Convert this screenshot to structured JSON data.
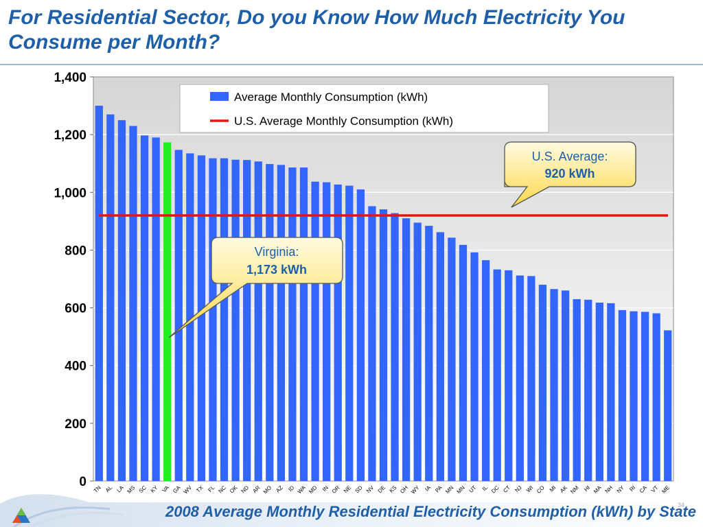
{
  "slide": {
    "title": "For Residential Sector, Do you Know How Much Electricity You Consume per Month?",
    "caption": "2008 Average Monthly Residential Electricity Consumption (kWh) by State",
    "page_number": "34"
  },
  "colors": {
    "bar": "#3366ff",
    "highlight_bar": "#22ee22",
    "average_line": "#ee1111",
    "callout_fill_top": "#fffbe0",
    "callout_fill_bottom": "#ffd84a",
    "title_color": "#1f5fa8"
  },
  "chart_data": {
    "type": "bar",
    "categories": [
      "TN",
      "AL",
      "LA",
      "MS",
      "SC",
      "KY",
      "VA",
      "GA",
      "WV",
      "TX",
      "FL",
      "NC",
      "OK",
      "ND",
      "AR",
      "MO",
      "AZ",
      "ID",
      "WA",
      "MD",
      "IN",
      "OR",
      "NE",
      "SD",
      "NV",
      "DE",
      "KS",
      "OH",
      "WY",
      "IA",
      "PA",
      "MN",
      "MN",
      "UT",
      "IL",
      "DC",
      "CT",
      "NJ",
      "WI",
      "CO",
      "MI",
      "AK",
      "NM",
      "HI",
      "MA",
      "NH",
      "NY",
      "RI",
      "CA",
      "VT",
      "ME"
    ],
    "series": [
      {
        "name": "Average Monthly Consumption (kWh)",
        "values": [
          1300,
          1270,
          1250,
          1230,
          1197,
          1190,
          1173,
          1147,
          1135,
          1128,
          1118,
          1118,
          1113,
          1112,
          1107,
          1098,
          1095,
          1086,
          1086,
          1037,
          1035,
          1027,
          1023,
          1010,
          952,
          941,
          928,
          910,
          895,
          884,
          862,
          843,
          818,
          792,
          765,
          733,
          730,
          712,
          710,
          680,
          665,
          660,
          630,
          628,
          618,
          616,
          592,
          588,
          586,
          581,
          522
        ]
      }
    ],
    "highlight": {
      "category": "VA",
      "series_color": "highlight_bar"
    },
    "reference_line": {
      "name": "U.S. Average Monthly Consumption (kWh)",
      "value": 920
    },
    "ylim": [
      0,
      1400
    ],
    "yticks": [
      0,
      200,
      400,
      600,
      800,
      1000,
      1200,
      1400
    ],
    "ytick_labels": [
      "0",
      "200",
      "400",
      "600",
      "800",
      "1,000",
      "1,200",
      "1,400"
    ],
    "grid": "horizontal",
    "legend_position": "top-center",
    "annotations": [
      {
        "line1": "U.S. Average:",
        "line2": "920 kWh"
      },
      {
        "line1": "Virginia:",
        "line2": "1,173 kWh"
      }
    ],
    "title": "",
    "xlabel": "",
    "ylabel": ""
  }
}
